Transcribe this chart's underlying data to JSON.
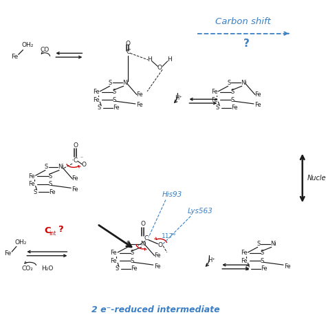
{
  "title": "2 e⁻-reduced intermediate",
  "carbon_shift_label": "Carbon shift",
  "carbon_shift_question": "?",
  "his93_label": "His93",
  "lys563_label": "Lys563",
  "angle_label": "117°",
  "nucleophilic_label": "Nucle",
  "bg_color": "#ffffff",
  "blue_color": "#3B7FC4",
  "red_color": "#CC0000",
  "black_color": "#1a1a1a",
  "fig_width": 4.74,
  "fig_height": 4.74,
  "dpi": 100
}
